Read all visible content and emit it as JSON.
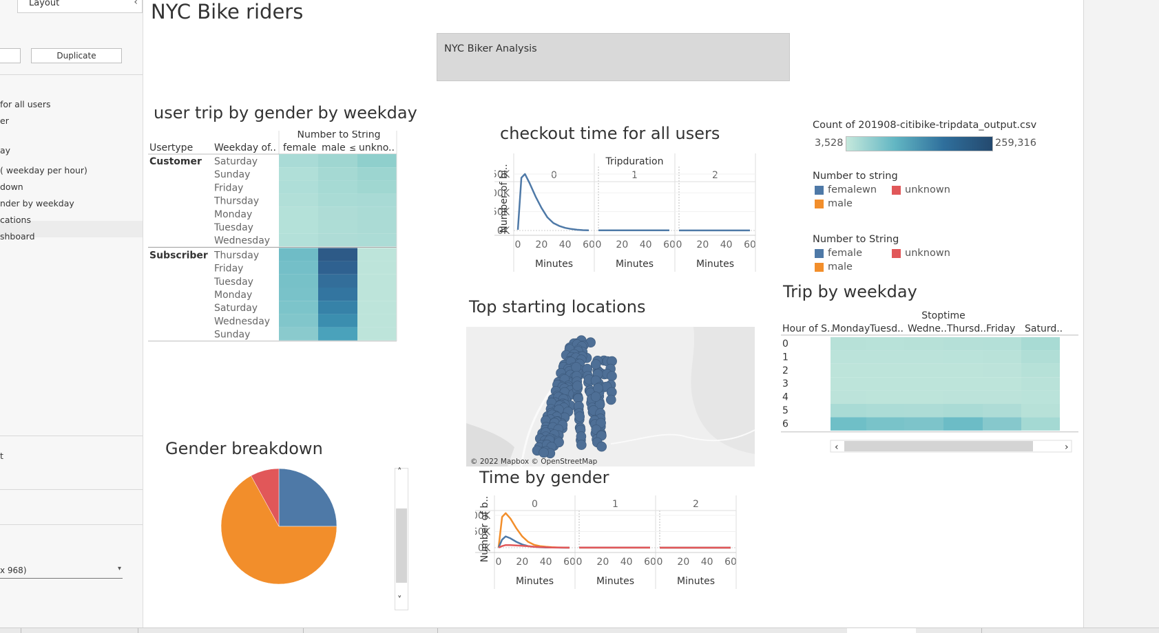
{
  "left_pane": {
    "tab_label": "Layout",
    "duplicate_label": "Duplicate",
    "sheets": [
      "for all users",
      "er",
      "ay",
      " ( weekday per hour)",
      "down",
      "nder by weekday",
      "cations",
      "shboard"
    ],
    "lower_item": "t",
    "size_value": "x 968)"
  },
  "dashboard": {
    "title": "NYC Bike riders",
    "text_box": "NYC Biker Analysis"
  },
  "heatmap_gender_weekday": {
    "title": "user trip by gender by weekday",
    "col_group_header": "Number to String",
    "headers": [
      "Usertype",
      "Weekday of..",
      "female",
      "male",
      "unkno.."
    ],
    "customer_label": "Customer",
    "subscriber_label": "Subscriber",
    "customer_days": [
      "Saturday",
      "Sunday",
      "Friday",
      "Thursday",
      "Monday",
      "Tuesday",
      "Wednesday"
    ],
    "subscriber_days": [
      "Thursday",
      "Friday",
      "Tuesday",
      "Monday",
      "Saturday",
      "Wednesday",
      "Sunday"
    ],
    "customer_colors": [
      [
        "#a9dbd6",
        "#9fd6d1",
        "#8fcfcc"
      ],
      [
        "#b0dfd8",
        "#a5d9d3",
        "#9cd5d0"
      ],
      [
        "#aeded8",
        "#a6dad4",
        "#a0d7d1"
      ],
      [
        "#b1dfd8",
        "#a9dbd5",
        "#a8dad5"
      ],
      [
        "#b4e1d9",
        "#aedcd6",
        "#aadbd5"
      ],
      [
        "#b4e1d9",
        "#aeddd6",
        "#abdbd5"
      ],
      [
        "#b3e0d9",
        "#aedcd6",
        "#acdcd6"
      ]
    ],
    "subscriber_colors": [
      [
        "#6fbcc6",
        "#2d5a87",
        "#bde4da"
      ],
      [
        "#74bfc8",
        "#2f6190",
        "#bde4da"
      ],
      [
        "#77c1c8",
        "#336e9a",
        "#bde4da"
      ],
      [
        "#79c2c9",
        "#3375a0",
        "#bde4da"
      ],
      [
        "#7cc4ca",
        "#3682a8",
        "#bde4da"
      ],
      [
        "#81c6cb",
        "#3b8eaf",
        "#bde4da"
      ],
      [
        "#8acacd",
        "#4aa2bb",
        "#bde4da"
      ]
    ]
  },
  "checkout_chart": {
    "title": "checkout time for all users",
    "header": "Tripduration",
    "panels": [
      "0",
      "1",
      "2"
    ],
    "ylabel": "Number of bi..",
    "yticks": [
      "150K",
      "100K",
      "50K",
      "0K"
    ],
    "xticks": [
      "0",
      "20",
      "40",
      "60"
    ],
    "xlabel": "Minutes"
  },
  "legends": {
    "count_title": "Count of 201908-citibike-tripdata_output.csv",
    "count_min": "3,528",
    "count_max": "259,316",
    "num_to_string_title": "Number to string",
    "num_to_string_items": [
      {
        "label": "femalewn",
        "color": "#4e79a7"
      },
      {
        "label": "unknown",
        "color": "#e15759"
      },
      {
        "label": "male",
        "color": "#f28e2b"
      }
    ],
    "num_to_String_title": "Number to String",
    "num_to_String_items": [
      {
        "label": "female",
        "color": "#4e79a7"
      },
      {
        "label": "unknown",
        "color": "#e15759"
      },
      {
        "label": "male",
        "color": "#f28e2b"
      }
    ]
  },
  "map": {
    "title": "Top starting locations",
    "attribution": "© 2022 Mapbox © OpenStreetMap"
  },
  "trip_by_weekday": {
    "title": "Trip by weekday",
    "header": "Stoptime",
    "columns": [
      "Hour of S..",
      "Monday",
      "Tuesd..",
      "Wedne..",
      "Thursd..",
      "Friday",
      "Saturd.."
    ],
    "hours": [
      "0",
      "1",
      "2",
      "3",
      "4",
      "5",
      "6"
    ]
  },
  "gender_pie": {
    "title": "Gender breakdown"
  },
  "time_by_gender": {
    "title": "Time by gender",
    "header": "Tripduration",
    "panels": [
      "0",
      "1",
      "2"
    ],
    "ylabel": "Number of b..",
    "yticks": [
      "100K",
      "50K",
      "0K"
    ],
    "xticks": [
      "0",
      "20",
      "40",
      "60"
    ],
    "xlabel": "Minutes"
  },
  "chart_data": [
    {
      "type": "heatmap",
      "title": "user trip by gender by weekday",
      "rows_customer": [
        "Saturday",
        "Sunday",
        "Friday",
        "Thursday",
        "Monday",
        "Tuesday",
        "Wednesday"
      ],
      "rows_subscriber": [
        "Thursday",
        "Friday",
        "Tuesday",
        "Monday",
        "Saturday",
        "Wednesday",
        "Sunday"
      ],
      "columns": [
        "female",
        "male",
        "unknown"
      ],
      "color_range": [
        3528,
        259316
      ]
    },
    {
      "type": "line",
      "title": "checkout time for all users",
      "xlabel": "Minutes",
      "ylabel": "Number of bi..",
      "ylim": [
        0,
        170000
      ],
      "panels": [
        {
          "name": "0",
          "x": [
            0,
            3,
            6,
            10,
            15,
            20,
            25,
            30,
            35,
            40,
            45,
            50,
            55,
            60
          ],
          "y": [
            2000,
            140000,
            150000,
            125000,
            90000,
            60000,
            35000,
            20000,
            12000,
            7000,
            4000,
            2000,
            1000,
            500
          ]
        },
        {
          "name": "1",
          "x": [
            0,
            60
          ],
          "y": 300
        },
        {
          "name": "2",
          "x": [
            0,
            60
          ],
          "y": 100
        }
      ]
    },
    {
      "type": "pie",
      "title": "Gender breakdown",
      "slices": [
        {
          "label": "female",
          "value": 25,
          "color": "#4e79a7"
        },
        {
          "label": "male",
          "value": 67,
          "color": "#f28e2b"
        },
        {
          "label": "unknown",
          "value": 8,
          "color": "#e15759"
        }
      ]
    },
    {
      "type": "line",
      "title": "Time by gender",
      "xlabel": "Minutes",
      "ylabel": "Number of b..",
      "ylim": [
        0,
        115000
      ],
      "x": [
        0,
        3,
        6,
        10,
        15,
        20,
        25,
        30,
        35,
        40,
        45,
        50,
        55,
        60
      ],
      "series": [
        {
          "name": "male",
          "color": "#f28e2b",
          "y": [
            1000,
            95000,
            107000,
            90000,
            60000,
            35000,
            18000,
            9000,
            5000,
            3000,
            1500,
            800,
            400,
            200
          ]
        },
        {
          "name": "female",
          "color": "#4e79a7",
          "y": [
            500,
            25000,
            35000,
            29000,
            18000,
            10000,
            5000,
            2500,
            1200,
            700,
            400,
            200,
            100,
            50
          ]
        },
        {
          "name": "unknown",
          "color": "#e15759",
          "y": [
            200,
            5000,
            8000,
            8000,
            7000,
            6000,
            4500,
            3000,
            2000,
            1200,
            700,
            400,
            200,
            100
          ]
        }
      ]
    },
    {
      "type": "heatmap",
      "title": "Trip by weekday",
      "rows": [
        "0",
        "1",
        "2",
        "3",
        "4",
        "5",
        "6"
      ],
      "columns": [
        "Monday",
        "Tuesd..",
        "Wedne..",
        "Thursd..",
        "Friday",
        "Saturd.."
      ],
      "colors": [
        [
          "#b7e1d8",
          "#b8e2d9",
          "#b7e1d8",
          "#b5e0d8",
          "#b4e0d8",
          "#a8dbd4"
        ],
        [
          "#bbe3da",
          "#bbe3da",
          "#bbe3da",
          "#bae3da",
          "#b9e2d9",
          "#b0ded6"
        ],
        [
          "#bde4da",
          "#bde4da",
          "#bde4da",
          "#bde4da",
          "#bce3da",
          "#b6e1d8"
        ],
        [
          "#bde4da",
          "#bde4da",
          "#bde4da",
          "#bde4da",
          "#bde4da",
          "#b9e2d9"
        ],
        [
          "#bce3da",
          "#bde4da",
          "#bde4da",
          "#bce3da",
          "#bce3da",
          "#bae3da"
        ],
        [
          "#a9dbd5",
          "#acdcd6",
          "#addcd6",
          "#aadbd5",
          "#aedcd6",
          "#b7e1d8"
        ],
        [
          "#6fbfc7",
          "#79c3c9",
          "#7dc4ca",
          "#6cbcc6",
          "#86c8cc",
          "#a4d9d3"
        ]
      ]
    }
  ]
}
